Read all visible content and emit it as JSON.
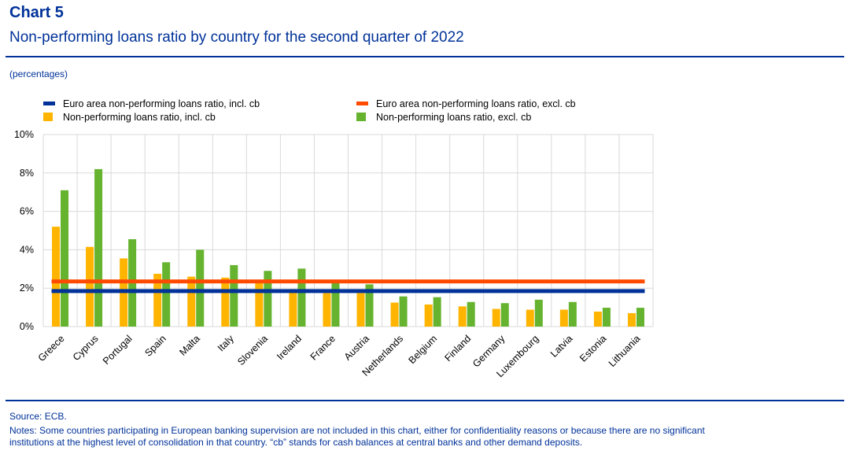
{
  "header": {
    "chart_number": "Chart 5",
    "title": "Non-performing loans ratio by country for the second quarter of 2022",
    "unit": "(percentages)"
  },
  "footer": {
    "source": "Source: ECB.",
    "notes_line1": "Notes: Some countries participating in European banking supervision are not included in this chart, either for confidentiality reasons or because there are no significant",
    "notes_line2": "institutions at the highest level of consolidation in that country. “cb” stands for cash balances at central banks and other demand deposits."
  },
  "colors": {
    "brand": "#003299",
    "incl_bar": "#FFB400",
    "excl_bar": "#65B32E",
    "incl_line": "#003299",
    "excl_line": "#FF4B00",
    "grid": "#D9D9D9"
  },
  "chart_data": {
    "type": "bar",
    "categories": [
      "Greece",
      "Cyprus",
      "Portugal",
      "Spain",
      "Malta",
      "Italy",
      "Slovenia",
      "Ireland",
      "France",
      "Austria",
      "Netherlands",
      "Belgium",
      "Finland",
      "Germany",
      "Luxembourg",
      "Latvia",
      "Estonia",
      "Lithuania"
    ],
    "series": [
      {
        "name": "Non-performing loans ratio, incl. cb",
        "values": [
          5.2,
          4.15,
          3.55,
          2.75,
          2.6,
          2.55,
          2.3,
          1.95,
          1.75,
          1.75,
          1.25,
          1.15,
          1.05,
          0.92,
          0.88,
          0.88,
          0.78,
          0.7
        ]
      },
      {
        "name": "Non-performing loans ratio, excl. cb",
        "values": [
          7.1,
          8.2,
          4.55,
          3.35,
          4.0,
          3.2,
          2.9,
          3.02,
          2.35,
          2.2,
          1.57,
          1.53,
          1.28,
          1.22,
          1.4,
          1.28,
          0.98,
          0.98
        ]
      }
    ],
    "reference_lines": [
      {
        "name": "Euro area non-performing loans ratio, incl. cb",
        "value": 1.85
      },
      {
        "name": "Euro area non-performing loans ratio, excl. cb",
        "value": 2.35
      }
    ],
    "ylim": [
      0,
      10
    ],
    "yticks": [
      "0%",
      "2%",
      "4%",
      "6%",
      "8%",
      "10%"
    ],
    "ytick_values": [
      0,
      2,
      4,
      6,
      8,
      10
    ],
    "grid": true,
    "legend_position": "top"
  }
}
